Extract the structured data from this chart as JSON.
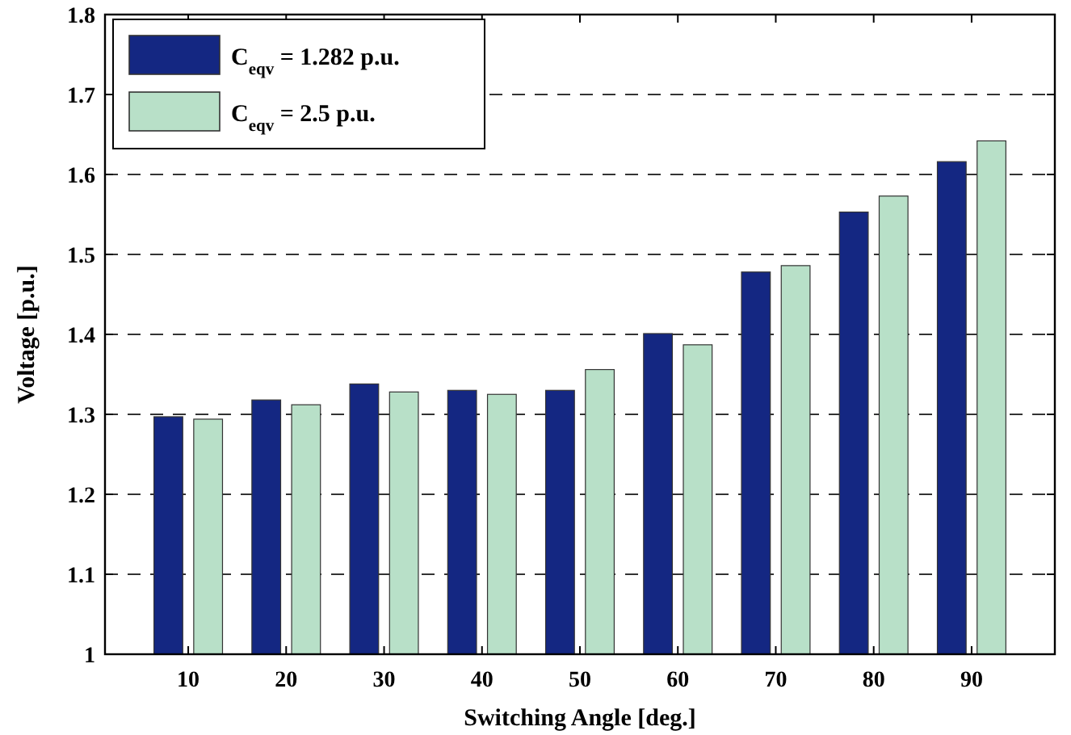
{
  "chart_data": {
    "type": "bar",
    "xlabel": "Switching Angle [deg.]",
    "ylabel": "Voltage [p.u.]",
    "categories": [
      "10",
      "20",
      "30",
      "40",
      "50",
      "60",
      "70",
      "80",
      "90"
    ],
    "series": [
      {
        "name": "C$_{eqv}$ = 1.282 p.u.",
        "color": "#142782",
        "values": [
          1.297,
          1.318,
          1.338,
          1.33,
          1.33,
          1.401,
          1.478,
          1.553,
          1.616
        ]
      },
      {
        "name": "C$_{eqv}$ = 2.5 p.u.",
        "color": "#b8e0c8",
        "values": [
          1.294,
          1.312,
          1.328,
          1.325,
          1.356,
          1.387,
          1.486,
          1.573,
          1.642
        ]
      }
    ],
    "ylim": [
      1,
      1.8
    ],
    "yticks": [
      1,
      1.1,
      1.2,
      1.3,
      1.4,
      1.5,
      1.6,
      1.7,
      1.8
    ],
    "grid": "y",
    "legend": "top left"
  }
}
